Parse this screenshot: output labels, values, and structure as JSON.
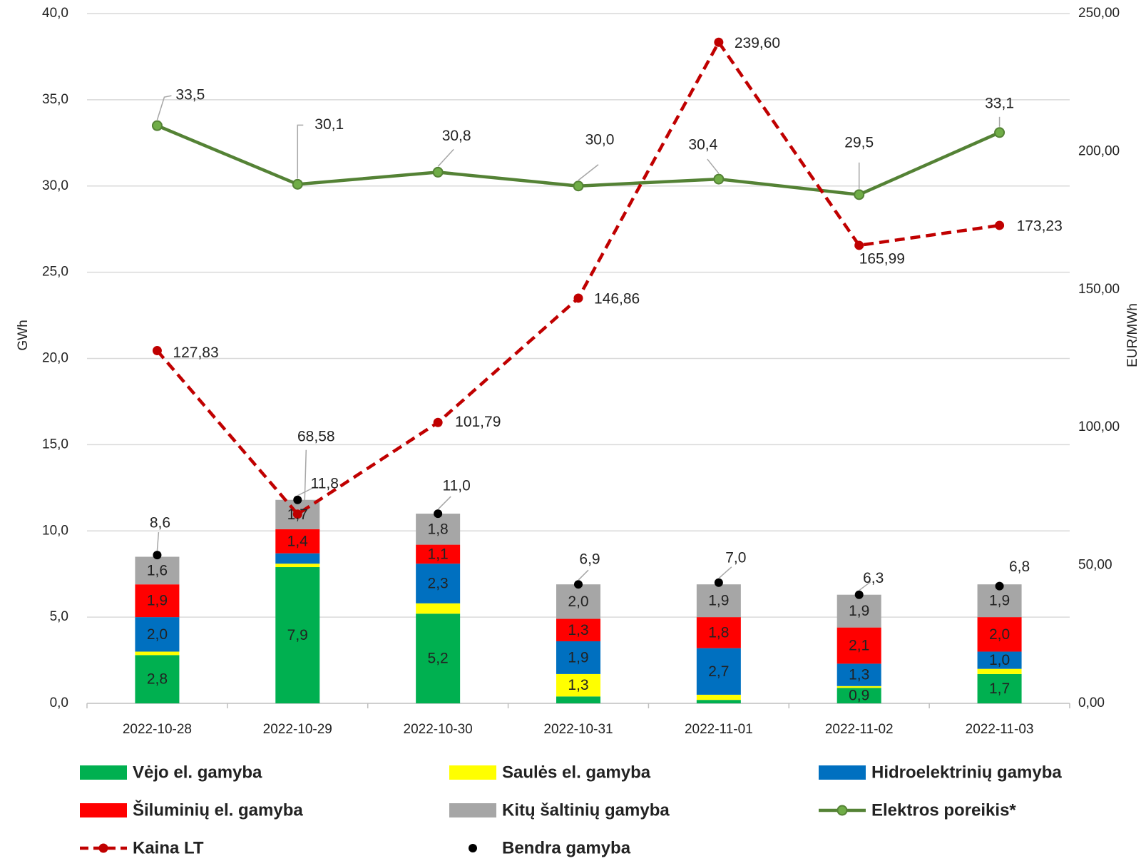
{
  "colors": {
    "wind": "#00b050",
    "solar": "#ffff00",
    "hydro": "#0070c0",
    "thermal": "#ff0000",
    "other": "#a6a6a6",
    "demand": "#548235",
    "price": "#c00000",
    "total": "#000000",
    "grid": "#d9d9d9"
  },
  "chart_data": {
    "type": "bar",
    "stacked": true,
    "categories": [
      "2022-10-28",
      "2022-10-29",
      "2022-10-30",
      "2022-10-31",
      "2022-11-01",
      "2022-11-02",
      "2022-11-03"
    ],
    "ylabel": "GWh",
    "y2label": "EUR/MWh",
    "ylim": [
      0,
      40
    ],
    "y2lim": [
      0,
      250
    ],
    "y_ticks": [
      "0,0",
      "5,0",
      "10,0",
      "15,0",
      "20,0",
      "25,0",
      "30,0",
      "35,0",
      "40,0"
    ],
    "y2_ticks": [
      "0,00",
      "50,00",
      "100,00",
      "150,00",
      "200,00",
      "250,00"
    ],
    "grid": true,
    "legend_position": "bottom",
    "series": [
      {
        "key": "wind",
        "name": "Vėjo el. gamyba",
        "type": "bar",
        "values": [
          2.8,
          7.9,
          5.2,
          0.4,
          0.2,
          0.9,
          1.7
        ],
        "labels": [
          "2,8",
          "7,9",
          "5,2",
          "",
          "",
          "0,9",
          "1,7"
        ]
      },
      {
        "key": "solar",
        "name": "Saulės el. gamyba",
        "type": "bar",
        "values": [
          0.2,
          0.2,
          0.6,
          1.3,
          0.3,
          0.1,
          0.3
        ],
        "labels": [
          "",
          "",
          "",
          "1,3",
          "",
          "",
          ""
        ]
      },
      {
        "key": "hydro",
        "name": "Hidroelektrinių gamyba",
        "type": "bar",
        "values": [
          2.0,
          0.6,
          2.3,
          1.9,
          2.7,
          1.3,
          1.0
        ],
        "labels": [
          "2,0",
          "",
          "2,3",
          "1,9",
          "2,7",
          "1,3",
          "1,0"
        ]
      },
      {
        "key": "thermal",
        "name": "Šiluminių el. gamyba",
        "type": "bar",
        "values": [
          1.9,
          1.4,
          1.1,
          1.3,
          1.8,
          2.1,
          2.0
        ],
        "labels": [
          "1,9",
          "1,4",
          "1,1",
          "1,3",
          "1,8",
          "2,1",
          "2,0"
        ]
      },
      {
        "key": "other",
        "name": "Kitų  šaltinių gamyba",
        "type": "bar",
        "values": [
          1.6,
          1.7,
          1.8,
          2.0,
          1.9,
          1.9,
          1.9
        ],
        "labels": [
          "1,6",
          "1,7",
          "1,8",
          "2,0",
          "1,9",
          "1,9",
          "1,9"
        ]
      },
      {
        "key": "demand",
        "name": "Elektros poreikis*",
        "type": "line",
        "axis": "left",
        "values": [
          33.5,
          30.1,
          30.8,
          30.0,
          30.4,
          29.5,
          33.1
        ],
        "labels": [
          "33,5",
          "30,1",
          "30,8",
          "30,0",
          "30,4",
          "29,5",
          "33,1"
        ]
      },
      {
        "key": "price",
        "name": "Kaina LT",
        "type": "line",
        "axis": "right",
        "dashed": true,
        "values": [
          127.83,
          68.58,
          101.79,
          146.86,
          239.6,
          165.99,
          173.23
        ],
        "labels": [
          "127,83",
          "68,58",
          "101,79",
          "146,86",
          "239,60",
          "165,99",
          "173,23"
        ]
      },
      {
        "key": "total",
        "name": "Bendra gamyba",
        "type": "point",
        "axis": "left",
        "values": [
          8.6,
          11.8,
          11.0,
          6.9,
          7.0,
          6.3,
          6.8
        ],
        "labels": [
          "8,6",
          "11,8",
          "11,0",
          "6,9",
          "7,0",
          "6,3",
          "6,8"
        ]
      }
    ]
  }
}
